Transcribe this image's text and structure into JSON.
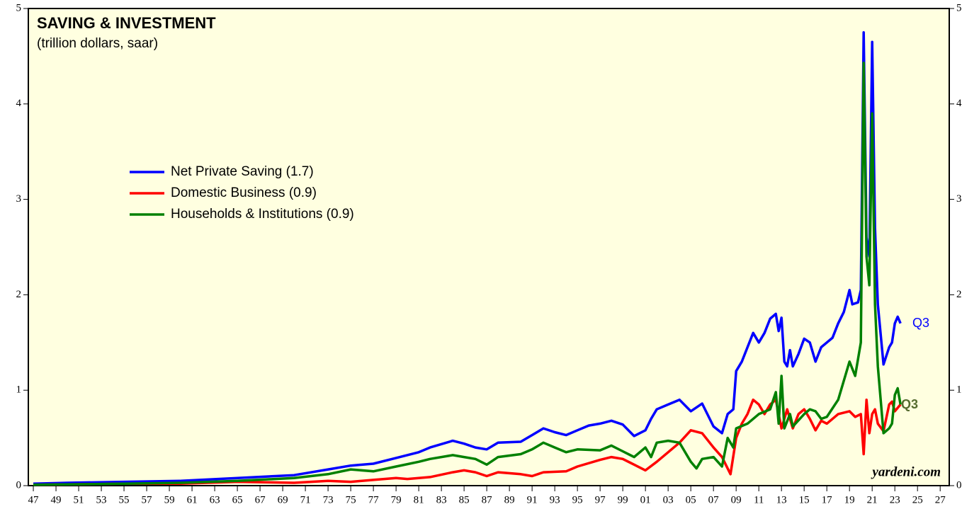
{
  "chart_data": {
    "type": "line",
    "title": "SAVING & INVESTMENT",
    "subtitle": "(trillion dollars, saar)",
    "source": "yardeni.com",
    "annotations": [
      "Q3",
      "Q3"
    ],
    "xlim": [
      1946.56,
      2027.8
    ],
    "ylim": [
      0,
      5
    ],
    "yticks": [
      0,
      1,
      2,
      3,
      4,
      5
    ],
    "xticks": [
      {
        "value": 1947,
        "label": "47"
      },
      {
        "value": 1949,
        "label": "49"
      },
      {
        "value": 1951,
        "label": "51"
      },
      {
        "value": 1953,
        "label": "53"
      },
      {
        "value": 1955,
        "label": "55"
      },
      {
        "value": 1957,
        "label": "57"
      },
      {
        "value": 1959,
        "label": "59"
      },
      {
        "value": 1961,
        "label": "61"
      },
      {
        "value": 1963,
        "label": "63"
      },
      {
        "value": 1965,
        "label": "65"
      },
      {
        "value": 1967,
        "label": "67"
      },
      {
        "value": 1969,
        "label": "69"
      },
      {
        "value": 1971,
        "label": "71"
      },
      {
        "value": 1973,
        "label": "73"
      },
      {
        "value": 1975,
        "label": "75"
      },
      {
        "value": 1977,
        "label": "77"
      },
      {
        "value": 1979,
        "label": "79"
      },
      {
        "value": 1981,
        "label": "81"
      },
      {
        "value": 1983,
        "label": "83"
      },
      {
        "value": 1985,
        "label": "85"
      },
      {
        "value": 1987,
        "label": "87"
      },
      {
        "value": 1989,
        "label": "89"
      },
      {
        "value": 1991,
        "label": "91"
      },
      {
        "value": 1993,
        "label": "93"
      },
      {
        "value": 1995,
        "label": "95"
      },
      {
        "value": 1997,
        "label": "97"
      },
      {
        "value": 1999,
        "label": "99"
      },
      {
        "value": 2001,
        "label": "01"
      },
      {
        "value": 2003,
        "label": "03"
      },
      {
        "value": 2005,
        "label": "05"
      },
      {
        "value": 2007,
        "label": "07"
      },
      {
        "value": 2009,
        "label": "09"
      },
      {
        "value": 2011,
        "label": "11"
      },
      {
        "value": 2013,
        "label": "13"
      },
      {
        "value": 2015,
        "label": "15"
      },
      {
        "value": 2017,
        "label": "17"
      },
      {
        "value": 2019,
        "label": "19"
      },
      {
        "value": 2021,
        "label": "21"
      },
      {
        "value": 2023,
        "label": "23"
      },
      {
        "value": 2025,
        "label": "25"
      },
      {
        "value": 2027,
        "label": "27"
      }
    ],
    "series": [
      {
        "name": "Net Private Saving (1.7)",
        "color": "#0000ff",
        "x": [
          1947,
          1950,
          1955,
          1960,
          1965,
          1970,
          1973,
          1975,
          1977,
          1979,
          1981,
          1982,
          1984,
          1985,
          1986,
          1987,
          1988,
          1990,
          1991,
          1992,
          1993,
          1994,
          1995,
          1996,
          1997,
          1998,
          1999,
          2000,
          2001,
          2001.5,
          2002,
          2003,
          2004,
          2005,
          2006,
          2007,
          2007.75,
          2008.25,
          2008.75,
          2009,
          2009.5,
          2010,
          2010.5,
          2011,
          2011.5,
          2012,
          2012.5,
          2012.75,
          2013,
          2013.25,
          2013.5,
          2013.75,
          2014,
          2014.5,
          2015,
          2015.5,
          2016,
          2016.5,
          2017,
          2017.5,
          2018,
          2018.5,
          2019,
          2019.25,
          2019.75,
          2020,
          2020.25,
          2020.5,
          2020.75,
          2021,
          2021.25,
          2021.5,
          2022,
          2022.5,
          2022.75,
          2023,
          2023.25,
          2023.5
        ],
        "values": [
          0.02,
          0.03,
          0.04,
          0.05,
          0.08,
          0.11,
          0.17,
          0.21,
          0.23,
          0.29,
          0.35,
          0.4,
          0.47,
          0.44,
          0.4,
          0.38,
          0.45,
          0.46,
          0.53,
          0.6,
          0.56,
          0.53,
          0.58,
          0.63,
          0.65,
          0.68,
          0.64,
          0.52,
          0.58,
          0.7,
          0.8,
          0.85,
          0.9,
          0.78,
          0.86,
          0.62,
          0.55,
          0.75,
          0.8,
          1.2,
          1.3,
          1.45,
          1.6,
          1.5,
          1.6,
          1.75,
          1.8,
          1.62,
          1.76,
          1.3,
          1.25,
          1.42,
          1.25,
          1.38,
          1.54,
          1.5,
          1.3,
          1.45,
          1.5,
          1.55,
          1.7,
          1.82,
          2.05,
          1.9,
          1.92,
          2.05,
          4.75,
          2.6,
          2.4,
          4.65,
          2.7,
          1.9,
          1.27,
          1.45,
          1.5,
          1.7,
          1.77,
          1.7
        ]
      },
      {
        "name": "Domestic Business (0.9)",
        "color": "#ff0000",
        "x": [
          1947,
          1955,
          1960,
          1965,
          1970,
          1973,
          1975,
          1977,
          1979,
          1980,
          1982,
          1984,
          1985,
          1986,
          1987,
          1988,
          1990,
          1991,
          1992,
          1994,
          1995,
          1997,
          1998,
          1999,
          2000,
          2001,
          2002,
          2003,
          2004,
          2005,
          2006,
          2007,
          2007.75,
          2008.5,
          2009,
          2009.5,
          2010,
          2010.5,
          2011,
          2011.5,
          2012,
          2012.5,
          2013,
          2013.5,
          2014,
          2014.5,
          2015,
          2015.5,
          2016,
          2016.5,
          2017,
          2018,
          2019,
          2019.5,
          2020,
          2020.25,
          2020.5,
          2020.75,
          2021,
          2021.25,
          2021.5,
          2022,
          2022.5,
          2022.75,
          2023,
          2023.5
        ],
        "values": [
          0.01,
          0.02,
          0.02,
          0.04,
          0.03,
          0.05,
          0.04,
          0.06,
          0.08,
          0.07,
          0.09,
          0.14,
          0.16,
          0.14,
          0.1,
          0.14,
          0.12,
          0.1,
          0.14,
          0.15,
          0.2,
          0.27,
          0.3,
          0.28,
          0.22,
          0.16,
          0.25,
          0.35,
          0.45,
          0.58,
          0.55,
          0.4,
          0.3,
          0.12,
          0.5,
          0.65,
          0.75,
          0.9,
          0.85,
          0.75,
          0.85,
          0.9,
          0.6,
          0.8,
          0.6,
          0.75,
          0.8,
          0.7,
          0.58,
          0.68,
          0.65,
          0.75,
          0.78,
          0.72,
          0.75,
          0.33,
          0.9,
          0.55,
          0.75,
          0.8,
          0.65,
          0.57,
          0.85,
          0.88,
          0.78,
          0.85
        ]
      },
      {
        "name": "Households & Institutions (0.9)",
        "color": "#008000",
        "x": [
          1947,
          1955,
          1960,
          1965,
          1970,
          1973,
          1975,
          1977,
          1979,
          1981,
          1982,
          1984,
          1985,
          1986,
          1987,
          1988,
          1990,
          1991,
          1992,
          1993,
          1994,
          1995,
          1997,
          1998,
          1999,
          2000,
          2001,
          2001.5,
          2002,
          2003,
          2004,
          2005,
          2005.5,
          2006,
          2007,
          2007.75,
          2008.25,
          2008.75,
          2009,
          2010,
          2011,
          2012,
          2012.5,
          2012.75,
          2013,
          2013.25,
          2013.75,
          2014,
          2015,
          2015.5,
          2016,
          2016.5,
          2017,
          2018,
          2019,
          2019.5,
          2020,
          2020.25,
          2020.5,
          2020.75,
          2021,
          2021.25,
          2021.5,
          2022,
          2022.5,
          2022.75,
          2023,
          2023.25,
          2023.5
        ],
        "values": [
          0.01,
          0.02,
          0.03,
          0.05,
          0.08,
          0.12,
          0.17,
          0.15,
          0.2,
          0.25,
          0.28,
          0.32,
          0.3,
          0.28,
          0.22,
          0.3,
          0.33,
          0.38,
          0.45,
          0.4,
          0.35,
          0.38,
          0.37,
          0.42,
          0.36,
          0.3,
          0.4,
          0.3,
          0.45,
          0.47,
          0.45,
          0.25,
          0.18,
          0.28,
          0.3,
          0.2,
          0.5,
          0.4,
          0.6,
          0.65,
          0.75,
          0.8,
          0.98,
          0.65,
          1.15,
          0.6,
          0.75,
          0.62,
          0.75,
          0.8,
          0.78,
          0.7,
          0.72,
          0.9,
          1.3,
          1.15,
          1.5,
          4.43,
          2.4,
          2.1,
          3.9,
          1.9,
          1.25,
          0.55,
          0.6,
          0.65,
          0.95,
          1.02,
          0.85
        ]
      }
    ]
  }
}
